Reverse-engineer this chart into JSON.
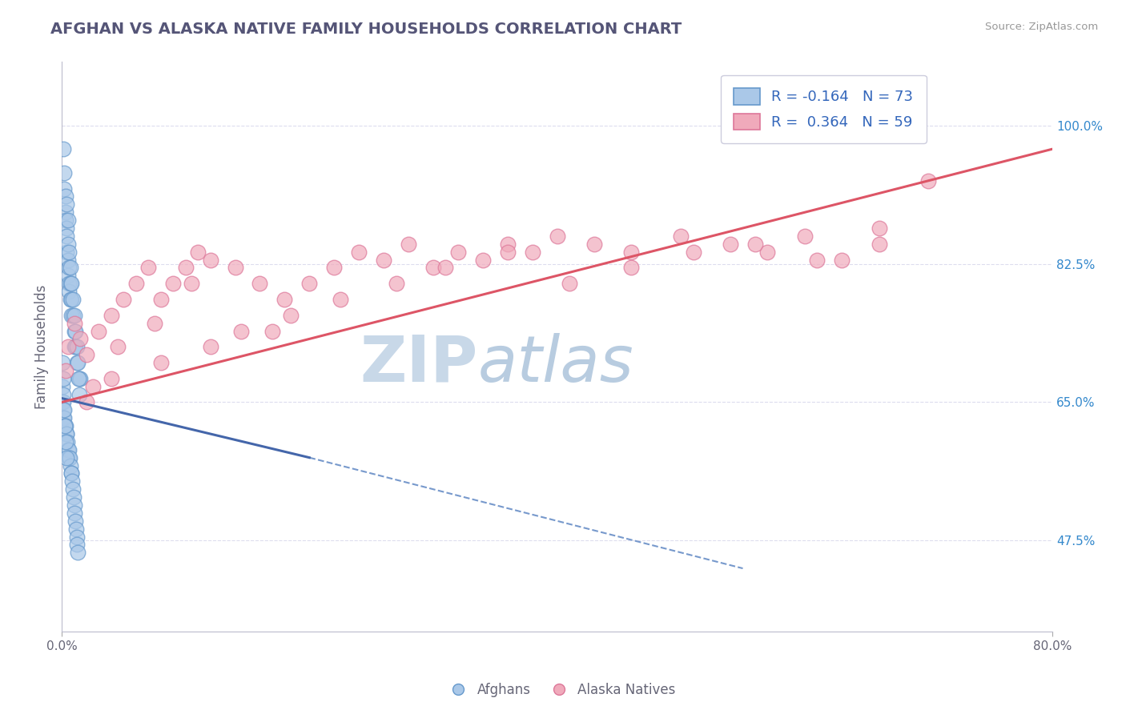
{
  "title": "AFGHAN VS ALASKA NATIVE FAMILY HOUSEHOLDS CORRELATION CHART",
  "source": "Source: ZipAtlas.com",
  "ylabel_label": "Family Households",
  "ylabel_ticks": [
    47.5,
    65.0,
    82.5,
    100.0
  ],
  "ylabel_tick_labels": [
    "47.5%",
    "65.0%",
    "82.5%",
    "100.0%"
  ],
  "xmin": 0.0,
  "xmax": 80.0,
  "ymin": 36.0,
  "ymax": 108.0,
  "legend_blue_r": "R = -0.164",
  "legend_blue_n": "N = 73",
  "legend_pink_r": "R =  0.364",
  "legend_pink_n": "N = 59",
  "blue_color": "#aac8e8",
  "pink_color": "#f0aabb",
  "blue_edge": "#6699cc",
  "pink_edge": "#dd7799",
  "trend_blue": "#4466aa",
  "trend_pink": "#dd5566",
  "trend_dashed_color": "#7799cc",
  "watermark_zip": "ZIP",
  "watermark_atlas": "atlas",
  "watermark_zip_color": "#c8d8e8",
  "watermark_atlas_color": "#b8cce0",
  "legend_label_blue": "Afghans",
  "legend_label_pink": "Alaska Natives",
  "title_color": "#555577",
  "axis_label_color": "#666677",
  "right_tick_color": "#3388cc",
  "background_color": "#ffffff",
  "grid_color": "#ddddee",
  "afghans_x": [
    0.1,
    0.2,
    0.2,
    0.3,
    0.3,
    0.3,
    0.4,
    0.4,
    0.4,
    0.4,
    0.5,
    0.5,
    0.5,
    0.5,
    0.6,
    0.6,
    0.6,
    0.6,
    0.7,
    0.7,
    0.7,
    0.8,
    0.8,
    0.8,
    0.9,
    0.9,
    1.0,
    1.0,
    1.0,
    1.1,
    1.1,
    1.2,
    1.2,
    1.3,
    1.4,
    1.5,
    0.05,
    0.05,
    0.1,
    0.15,
    0.15,
    0.2,
    0.25,
    0.3,
    0.35,
    0.4,
    0.45,
    0.5,
    0.55,
    0.6,
    0.65,
    0.7,
    0.75,
    0.8,
    0.85,
    0.9,
    0.95,
    1.0,
    1.05,
    1.1,
    1.15,
    1.2,
    1.25,
    1.3,
    1.35,
    1.4,
    0.05,
    0.1,
    0.15,
    0.2,
    0.25,
    0.3,
    0.35
  ],
  "afghans_y": [
    97.0,
    94.0,
    92.0,
    91.0,
    89.0,
    88.0,
    90.0,
    87.0,
    86.0,
    84.0,
    88.0,
    85.0,
    83.0,
    81.0,
    84.0,
    82.0,
    80.0,
    79.0,
    82.0,
    80.0,
    78.0,
    80.0,
    78.0,
    76.0,
    78.0,
    76.0,
    76.0,
    74.0,
    72.0,
    74.0,
    72.0,
    72.0,
    70.0,
    70.0,
    68.0,
    68.0,
    67.0,
    65.0,
    65.0,
    64.0,
    63.0,
    63.0,
    62.0,
    62.0,
    61.0,
    61.0,
    60.0,
    59.0,
    59.0,
    58.0,
    58.0,
    57.0,
    56.0,
    56.0,
    55.0,
    54.0,
    53.0,
    52.0,
    51.0,
    50.0,
    49.0,
    48.0,
    47.0,
    46.0,
    68.0,
    66.0,
    70.0,
    68.0,
    66.0,
    64.0,
    62.0,
    60.0,
    58.0
  ],
  "alaska_x": [
    0.3,
    0.5,
    1.0,
    1.5,
    2.0,
    3.0,
    4.0,
    5.0,
    6.0,
    7.0,
    8.0,
    9.0,
    10.0,
    11.0,
    12.0,
    14.0,
    16.0,
    18.0,
    20.0,
    22.0,
    24.0,
    26.0,
    28.0,
    30.0,
    32.0,
    34.0,
    36.0,
    38.0,
    40.0,
    43.0,
    46.0,
    50.0,
    54.0,
    57.0,
    60.0,
    63.0,
    66.0,
    70.0,
    2.5,
    4.5,
    7.5,
    10.5,
    14.5,
    18.5,
    22.5,
    27.0,
    31.0,
    36.0,
    41.0,
    46.0,
    51.0,
    56.0,
    61.0,
    66.0,
    2.0,
    4.0,
    8.0,
    12.0,
    17.0
  ],
  "alaska_y": [
    69.0,
    72.0,
    75.0,
    73.0,
    71.0,
    74.0,
    76.0,
    78.0,
    80.0,
    82.0,
    78.0,
    80.0,
    82.0,
    84.0,
    83.0,
    82.0,
    80.0,
    78.0,
    80.0,
    82.0,
    84.0,
    83.0,
    85.0,
    82.0,
    84.0,
    83.0,
    85.0,
    84.0,
    86.0,
    85.0,
    84.0,
    86.0,
    85.0,
    84.0,
    86.0,
    83.0,
    85.0,
    93.0,
    67.0,
    72.0,
    75.0,
    80.0,
    74.0,
    76.0,
    78.0,
    80.0,
    82.0,
    84.0,
    80.0,
    82.0,
    84.0,
    85.0,
    83.0,
    87.0,
    65.0,
    68.0,
    70.0,
    72.0,
    74.0
  ],
  "blue_line_x0": 0.0,
  "blue_line_y0": 65.5,
  "blue_line_x1": 20.0,
  "blue_line_y1": 58.0,
  "blue_dash_x0": 20.0,
  "blue_dash_y0": 58.0,
  "blue_dash_x1": 55.0,
  "blue_dash_y1": 44.0,
  "pink_line_x0": 0.0,
  "pink_line_y0": 65.0,
  "pink_line_x1": 80.0,
  "pink_line_y1": 97.0
}
